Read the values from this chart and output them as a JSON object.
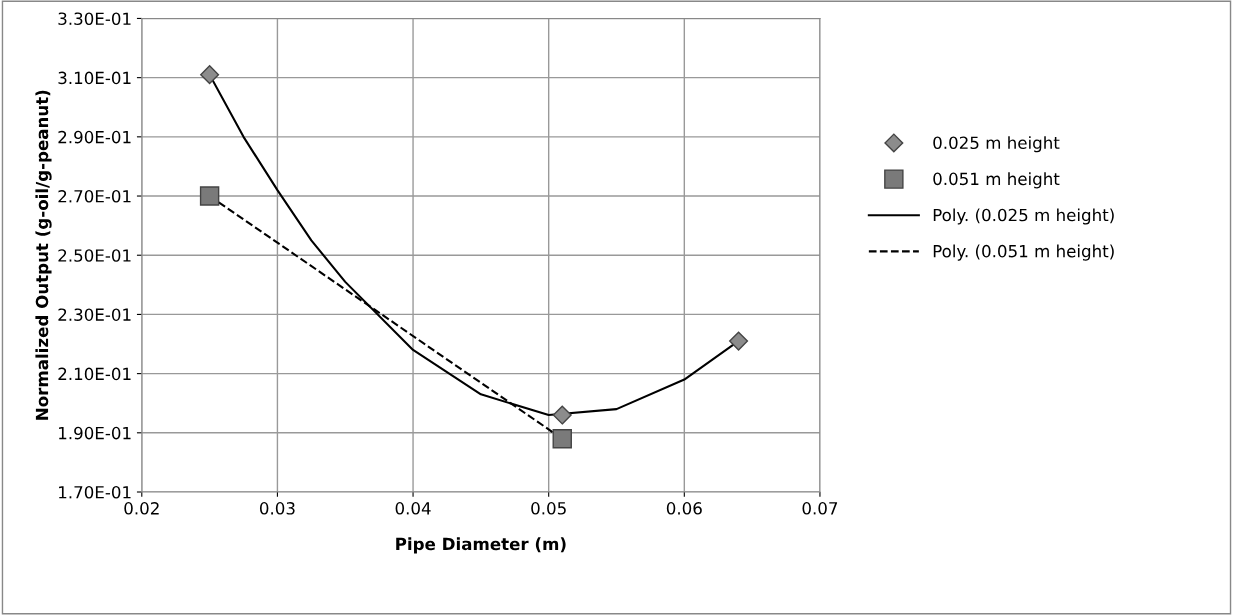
{
  "chart_data": {
    "type": "scatter",
    "xlabel": "Pipe Diameter (m)",
    "ylabel": "Normalized Output (g-oil/g-peanut)",
    "xlim": [
      0.02,
      0.07
    ],
    "xticks": [
      {
        "value": 0.02,
        "label": "0.02"
      },
      {
        "value": 0.03,
        "label": "0.03"
      },
      {
        "value": 0.04,
        "label": "0.04"
      },
      {
        "value": 0.05,
        "label": "0.05"
      },
      {
        "value": 0.06,
        "label": "0.06"
      },
      {
        "value": 0.07,
        "label": "0.07"
      }
    ],
    "ylim": [
      0.17,
      0.33
    ],
    "yticks": [
      {
        "value": 0.17,
        "label": "1.70E-01"
      },
      {
        "value": 0.19,
        "label": "1.90E-01"
      },
      {
        "value": 0.21,
        "label": "2.10E-01"
      },
      {
        "value": 0.23,
        "label": "2.30E-01"
      },
      {
        "value": 0.25,
        "label": "2.50E-01"
      },
      {
        "value": 0.27,
        "label": "2.70E-01"
      },
      {
        "value": 0.29,
        "label": "2.90E-01"
      },
      {
        "value": 0.31,
        "label": "3.10E-01"
      },
      {
        "value": 0.33,
        "label": "3.30E-01"
      }
    ],
    "grid": true,
    "legend": "right",
    "series": [
      {
        "name": "0.025 m height",
        "marker": "diamond",
        "color": "#8c8c8c",
        "x": [
          0.025,
          0.051,
          0.064
        ],
        "values": [
          0.311,
          0.196,
          0.221
        ]
      },
      {
        "name": "0.051 m height",
        "marker": "square",
        "color": "#7a7a7a",
        "x": [
          0.025,
          0.051
        ],
        "values": [
          0.27,
          0.188
        ]
      },
      {
        "name": "Poly. (0.025 m height)",
        "type": "line",
        "line_style": "solid",
        "color": "#000000",
        "x": [
          0.025,
          0.0275,
          0.03,
          0.0325,
          0.035,
          0.04,
          0.045,
          0.05,
          0.055,
          0.06,
          0.064
        ],
        "values": [
          0.311,
          0.29,
          0.272,
          0.255,
          0.241,
          0.218,
          0.203,
          0.196,
          0.198,
          0.208,
          0.221
        ]
      },
      {
        "name": "Poly. (0.051 m height)",
        "type": "line",
        "line_style": "dashed",
        "color": "#000000",
        "x": [
          0.025,
          0.051
        ],
        "values": [
          0.27,
          0.188
        ]
      }
    ]
  }
}
